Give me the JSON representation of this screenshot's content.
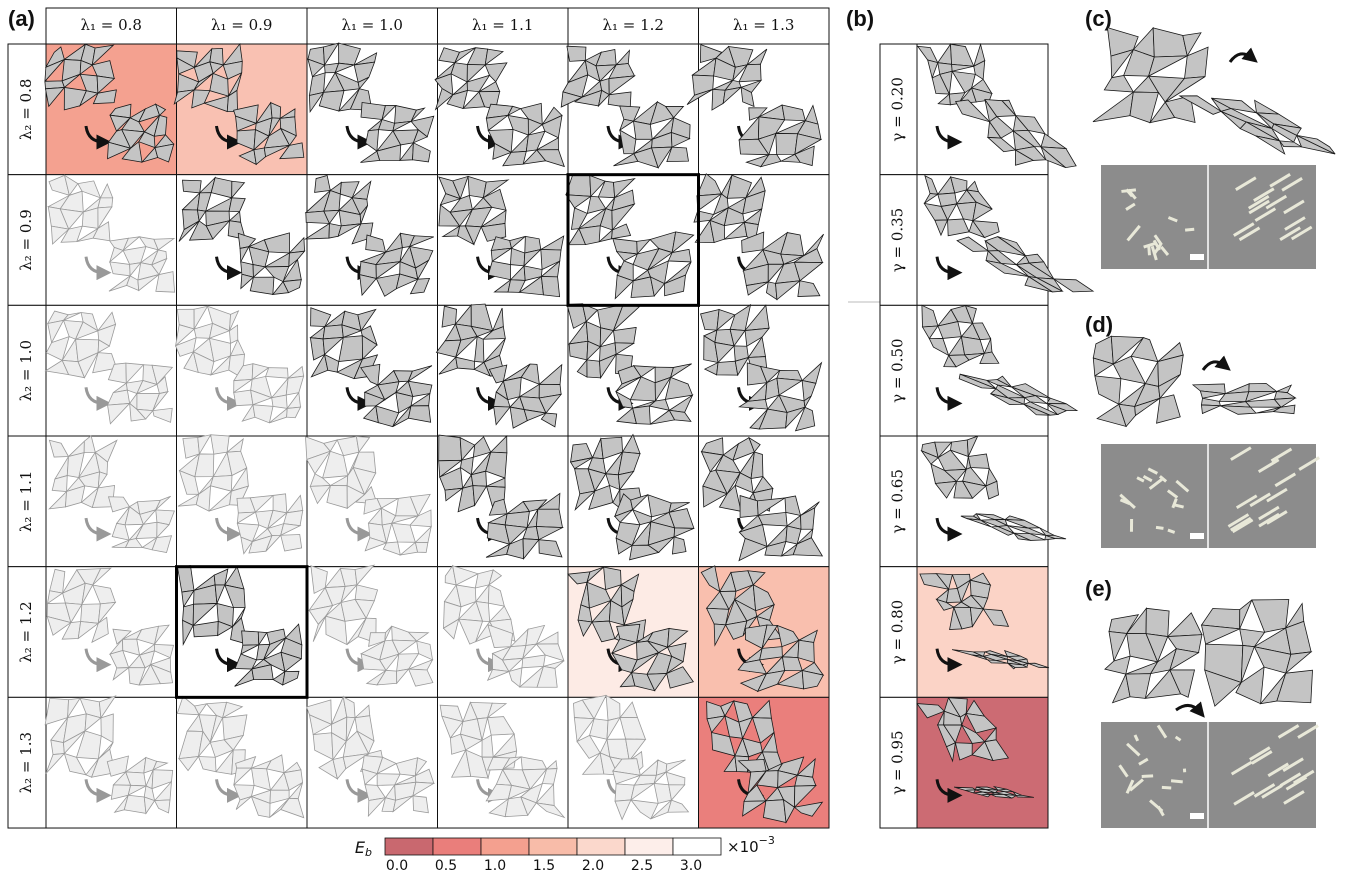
{
  "panels": {
    "a": "(a)",
    "b": "(b)",
    "c": "(c)",
    "d": "(d)",
    "e": "(e)"
  },
  "grid": {
    "columns": [
      "λ₁ = 0.8",
      "λ₁ = 0.9",
      "λ₁ = 1.0",
      "λ₁ = 1.1",
      "λ₁ = 1.2",
      "λ₁ = 1.3"
    ],
    "rows": [
      {
        "label": "λ₂ = 0.8",
        "cells": [
          {
            "fill": "#f4a190",
            "style": "dark"
          },
          {
            "fill": "#f9c1b2",
            "style": "dark"
          },
          {
            "fill": "#ffffff",
            "style": "dark"
          },
          {
            "fill": "#ffffff",
            "style": "dark"
          },
          {
            "fill": "#ffffff",
            "style": "dark"
          },
          {
            "fill": "#ffffff",
            "style": "dark"
          }
        ]
      },
      {
        "label": "λ₂ = 0.9",
        "cells": [
          {
            "fill": "#ffffff",
            "style": "faded"
          },
          {
            "fill": "#ffffff",
            "style": "dark"
          },
          {
            "fill": "#ffffff",
            "style": "dark"
          },
          {
            "fill": "#ffffff",
            "style": "dark"
          },
          {
            "fill": "#ffffff",
            "style": "dark",
            "outlined": true
          },
          {
            "fill": "#ffffff",
            "style": "dark"
          }
        ]
      },
      {
        "label": "λ₂ = 1.0",
        "cells": [
          {
            "fill": "#ffffff",
            "style": "faded"
          },
          {
            "fill": "#ffffff",
            "style": "faded"
          },
          {
            "fill": "#ffffff",
            "style": "dark"
          },
          {
            "fill": "#ffffff",
            "style": "dark"
          },
          {
            "fill": "#ffffff",
            "style": "dark"
          },
          {
            "fill": "#ffffff",
            "style": "dark"
          }
        ]
      },
      {
        "label": "λ₂ = 1.1",
        "cells": [
          {
            "fill": "#ffffff",
            "style": "faded"
          },
          {
            "fill": "#ffffff",
            "style": "faded"
          },
          {
            "fill": "#ffffff",
            "style": "faded"
          },
          {
            "fill": "#ffffff",
            "style": "dark"
          },
          {
            "fill": "#ffffff",
            "style": "dark"
          },
          {
            "fill": "#ffffff",
            "style": "dark"
          }
        ]
      },
      {
        "label": "λ₂ = 1.2",
        "cells": [
          {
            "fill": "#ffffff",
            "style": "faded"
          },
          {
            "fill": "#ffffff",
            "style": "dark",
            "outlined": true
          },
          {
            "fill": "#ffffff",
            "style": "faded"
          },
          {
            "fill": "#ffffff",
            "style": "faded"
          },
          {
            "fill": "#fdebe5",
            "style": "dark"
          },
          {
            "fill": "#f9bfae",
            "style": "dark"
          }
        ]
      },
      {
        "label": "λ₂ = 1.3",
        "cells": [
          {
            "fill": "#ffffff",
            "style": "faded"
          },
          {
            "fill": "#ffffff",
            "style": "faded"
          },
          {
            "fill": "#ffffff",
            "style": "faded"
          },
          {
            "fill": "#ffffff",
            "style": "faded"
          },
          {
            "fill": "#ffffff",
            "style": "faded"
          },
          {
            "fill": "#ea7f7c",
            "style": "dark"
          }
        ]
      }
    ]
  },
  "gamma": {
    "rows": [
      {
        "label": "γ = 0.20",
        "fill": "#ffffff"
      },
      {
        "label": "γ = 0.35",
        "fill": "#ffffff"
      },
      {
        "label": "γ = 0.50",
        "fill": "#ffffff"
      },
      {
        "label": "γ = 0.65",
        "fill": "#ffffff"
      },
      {
        "label": "γ = 0.80",
        "fill": "#fbd3c6"
      },
      {
        "label": "γ = 0.95",
        "fill": "#cc6b73"
      }
    ]
  },
  "colorbar": {
    "symbol": "E",
    "subscript": "b",
    "multiplier": "×10",
    "exponent": "−3",
    "ticks": [
      "0.0",
      "0.5",
      "1.0",
      "1.5",
      "2.0",
      "2.5",
      "3.0"
    ],
    "colors": [
      "#c9686f",
      "#ea7e7b",
      "#f4a08f",
      "#f8bca9",
      "#fbd8cc",
      "#fdeeea",
      "#ffffff"
    ]
  }
}
